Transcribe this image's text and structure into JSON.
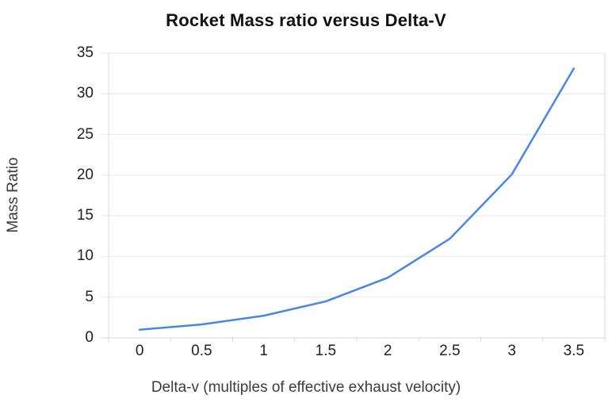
{
  "chart_data": {
    "type": "line",
    "title": "Rocket Mass ratio versus Delta-V",
    "xlabel": "Delta-v (multiples of effective exhaust velocity)",
    "ylabel": "Mass Ratio",
    "x": [
      0,
      0.5,
      1,
      1.5,
      2,
      2.5,
      3,
      3.5
    ],
    "x_tick_labels": [
      "0",
      "0.5",
      "1",
      "1.5",
      "2",
      "2.5",
      "3",
      "3.5"
    ],
    "series": [
      {
        "name": "Mass Ratio",
        "values": [
          1,
          1.65,
          2.72,
          4.48,
          7.39,
          12.18,
          20.09,
          33.12
        ]
      }
    ],
    "y_ticks": [
      0,
      5,
      10,
      15,
      20,
      25,
      30,
      35
    ],
    "ylim": [
      0,
      35
    ],
    "grid": "horizontal",
    "legend": "none",
    "colors": {
      "line": "#4a86e8",
      "gridline": "#e6e6e6",
      "axis": "#d9d9d9",
      "background": "#ffffff",
      "title_text": "#111111",
      "tick_text": "#212121",
      "axis_title_text": "#3c3c3c"
    }
  }
}
